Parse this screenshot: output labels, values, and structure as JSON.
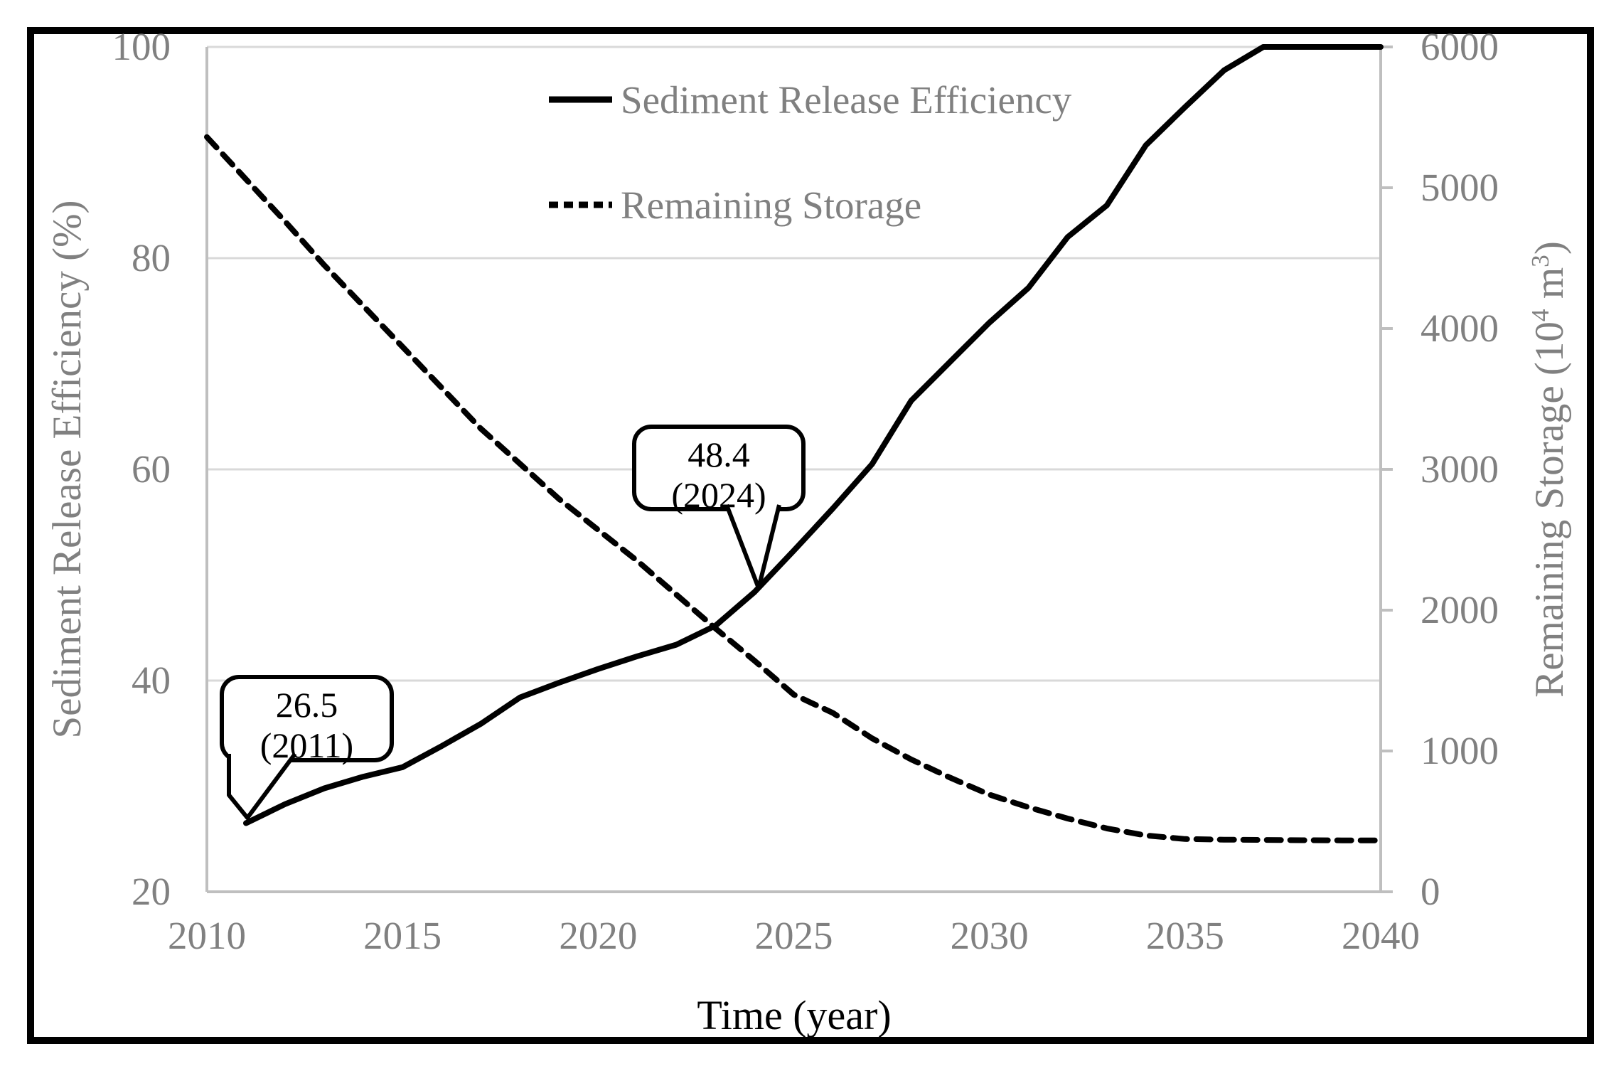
{
  "colors": {
    "series": "#000000",
    "axis_line": "#BFBFBF",
    "gridline": "#D9D9D9",
    "label_text": "#808080",
    "annotation_text": "#000000",
    "background": "#FFFFFF"
  },
  "chart_data": {
    "type": "line",
    "title": "",
    "xlabel": "Time (year)",
    "grid": "horizontal-only",
    "legend_position": "inside-top-center",
    "x_range": [
      2010,
      2040
    ],
    "x_ticks": [
      "2010",
      "2015",
      "2020",
      "2025",
      "2030",
      "2035",
      "2040"
    ],
    "left_axis": {
      "label": "Sediment Release Efficiency (%)",
      "ticks": [
        "100",
        "80",
        "60",
        "40",
        "20"
      ],
      "tick_values": [
        100,
        80,
        60,
        40,
        20
      ],
      "range": [
        20,
        100
      ]
    },
    "right_axis": {
      "label_plain": "Remaining Storage (10^4 m^3)",
      "label_prefix": "Remaining Storage (10",
      "label_sup1": "4",
      "label_mid": " m",
      "label_sup2": "3",
      "label_suffix": ")",
      "ticks": [
        "6000",
        "5000",
        "4000",
        "3000",
        "2000",
        "1000",
        "0"
      ],
      "tick_values": [
        6000,
        5000,
        4000,
        3000,
        2000,
        1000,
        0
      ],
      "range": [
        0,
        6000
      ]
    },
    "series": [
      {
        "name": "Sediment Release Efficiency",
        "axis": "left",
        "style": "solid",
        "x": [
          2011,
          2012,
          2013,
          2014,
          2015,
          2016,
          2017,
          2018,
          2019,
          2020,
          2021,
          2022,
          2023,
          2024,
          2025,
          2026,
          2027,
          2028,
          2029,
          2030,
          2031,
          2032,
          2033,
          2034,
          2035,
          2036,
          2037,
          2038,
          2039,
          2040
        ],
        "values": [
          26.5,
          28.3,
          29.8,
          30.9,
          31.8,
          33.8,
          35.9,
          38.4,
          39.8,
          41.1,
          42.3,
          43.4,
          45.2,
          48.4,
          52.3,
          56.3,
          60.5,
          66.5,
          70.2,
          73.9,
          77.2,
          82.0,
          85.0,
          90.7,
          94.3,
          97.8,
          100,
          100,
          100,
          100
        ]
      },
      {
        "name": "Remaining Storage",
        "axis": "right",
        "style": "dashed",
        "x": [
          2010,
          2011,
          2012,
          2013,
          2014,
          2015,
          2016,
          2017,
          2018,
          2019,
          2020,
          2021,
          2022,
          2023,
          2024,
          2025,
          2026,
          2027,
          2028,
          2029,
          2030,
          2031,
          2032,
          2033,
          2034,
          2035,
          2036,
          2037,
          2038,
          2039,
          2040
        ],
        "values": [
          5360,
          5060,
          4760,
          4450,
          4160,
          3870,
          3580,
          3290,
          3040,
          2790,
          2570,
          2350,
          2110,
          1870,
          1640,
          1400,
          1270,
          1090,
          940,
          810,
          690,
          600,
          520,
          450,
          400,
          375,
          370,
          368,
          366,
          365,
          365
        ]
      }
    ],
    "annotations": [
      {
        "line1": "26.5",
        "line2": "(2011)",
        "target_year": 2011,
        "target_value": 26.5
      },
      {
        "line1": "48.4",
        "line2": "(2024)",
        "target_year": 2024,
        "target_value": 48.4
      }
    ]
  }
}
